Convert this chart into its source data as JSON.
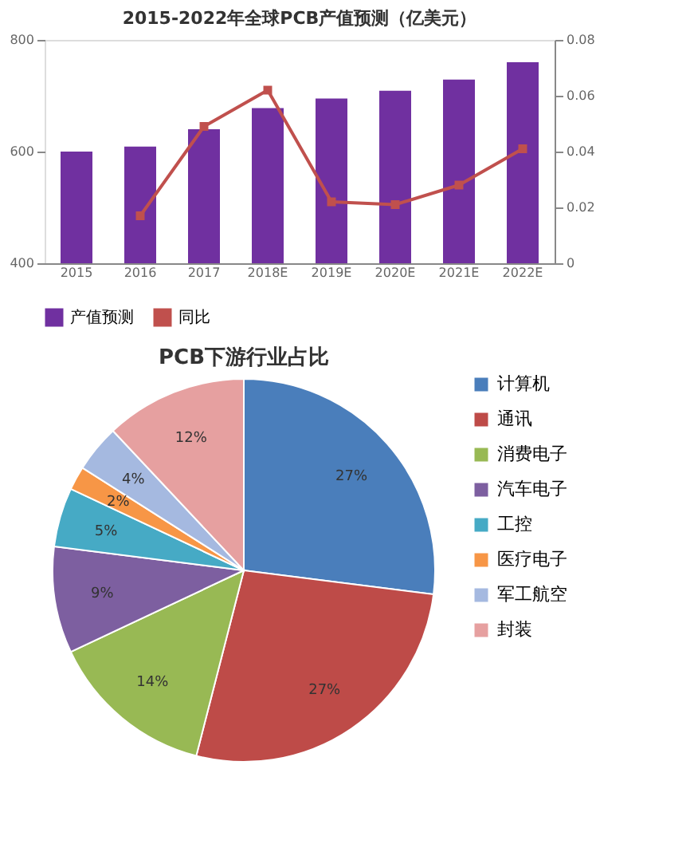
{
  "chart_data": [
    {
      "type": "bar",
      "title": "2015-2022年全球PCB产值预测（亿美元）",
      "categories": [
        "2015",
        "2016",
        "2017",
        "2018E",
        "2019E",
        "2020E",
        "2021E",
        "2022E"
      ],
      "series": [
        {
          "name": "产值预测",
          "type": "bar",
          "color": "#7030a0",
          "values": [
            600,
            609,
            640,
            678,
            695,
            709,
            729,
            760
          ]
        },
        {
          "name": "同比",
          "type": "line",
          "axis": "y2",
          "color": "#c0504d",
          "marker": "square",
          "values": [
            null,
            0.017,
            0.049,
            0.062,
            0.022,
            0.021,
            0.028,
            0.041
          ]
        }
      ],
      "ylim": [
        400,
        800
      ],
      "yticks": [
        400,
        600,
        800
      ],
      "y2lim": [
        0,
        0.08
      ],
      "y2ticks": [
        {
          "value": 0,
          "label": "0"
        },
        {
          "value": 0.02,
          "label": "0.02"
        },
        {
          "value": 0.04,
          "label": "0.04"
        },
        {
          "value": 0.06,
          "label": "0.06"
        },
        {
          "value": 0.08,
          "label": "0.08"
        }
      ],
      "grid": false,
      "legend": "bottom"
    },
    {
      "type": "pie",
      "title": "PCB下游行业占比",
      "categories": [
        "计算机",
        "通讯",
        "消费电子",
        "汽车电子",
        "工控",
        "医疗电子",
        "军工航空",
        "封装"
      ],
      "values": [
        27,
        27,
        14,
        9,
        5,
        2,
        4,
        12
      ],
      "value_labels": [
        "27%",
        "27%",
        "14%",
        "9%",
        "5%",
        "2%",
        "4%",
        "12%"
      ],
      "colors": [
        "#4a7ebb",
        "#be4b48",
        "#98b954",
        "#7d5fa0",
        "#46aac5",
        "#f79646",
        "#a5b9e0",
        "#e6a0a0"
      ],
      "legend": "right"
    }
  ]
}
